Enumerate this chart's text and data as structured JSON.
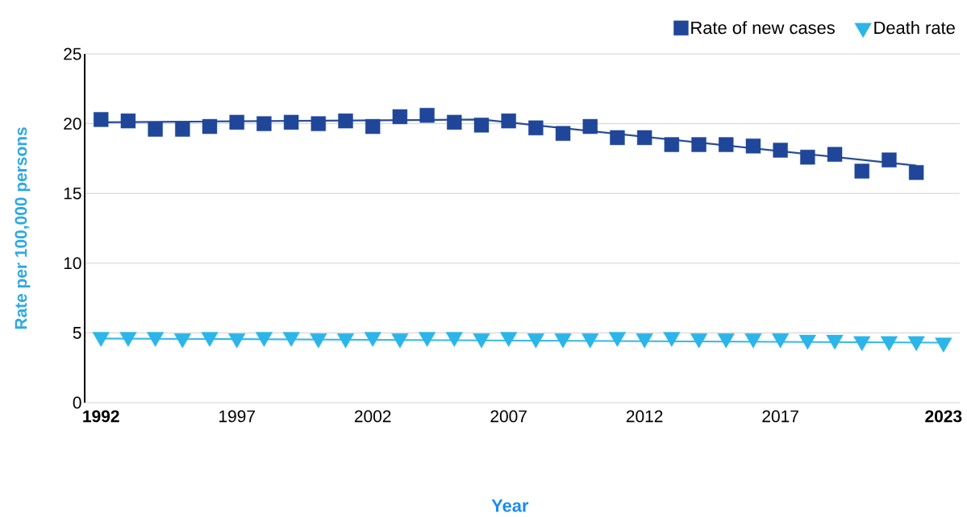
{
  "chart_data": {
    "type": "line",
    "xlabel": "Year",
    "ylabel": "Rate per 100,000 persons",
    "xlim": [
      1991.4,
      2023.6
    ],
    "ylim": [
      0,
      25
    ],
    "yticks": [
      0,
      5,
      10,
      15,
      20,
      25
    ],
    "xticks": [
      1992,
      1997,
      2002,
      2007,
      2012,
      2017,
      2023
    ],
    "grid": "y",
    "legend": "top right",
    "series": [
      {
        "color": "#2a4e96",
        "x": [
          1992,
          2006,
          2022
        ],
        "values": [
          20.1,
          20.3,
          17.0
        ],
        "marker": "none"
      },
      {
        "color": "#36b8e8",
        "x": [
          1992,
          2023
        ],
        "values": [
          4.6,
          4.3
        ],
        "marker": "none"
      },
      {
        "type": "scatter",
        "name": "Rate of new cases",
        "color": "#1f4699",
        "marker": "square",
        "x": [
          1992,
          1993,
          1994,
          1995,
          1996,
          1997,
          1998,
          1999,
          2000,
          2001,
          2002,
          2003,
          2004,
          2005,
          2006,
          2007,
          2008,
          2009,
          2010,
          2011,
          2012,
          2013,
          2014,
          2015,
          2016,
          2017,
          2018,
          2019,
          2020,
          2021,
          2022
        ],
        "values": [
          20.3,
          20.2,
          19.6,
          19.6,
          19.8,
          20.1,
          20.0,
          20.1,
          20.0,
          20.2,
          19.8,
          20.5,
          20.6,
          20.1,
          19.9,
          20.2,
          19.7,
          19.3,
          19.8,
          19.0,
          19.0,
          18.5,
          18.5,
          18.5,
          18.4,
          18.1,
          17.6,
          17.8,
          16.6,
          17.4,
          16.5
        ]
      },
      {
        "type": "scatter",
        "name": "Death rate",
        "color": "#2bb5e8",
        "marker": "triangle",
        "x": [
          1992,
          1993,
          1994,
          1995,
          1996,
          1997,
          1998,
          1999,
          2000,
          2001,
          2002,
          2003,
          2004,
          2005,
          2006,
          2007,
          2008,
          2009,
          2010,
          2011,
          2012,
          2013,
          2014,
          2015,
          2016,
          2017,
          2018,
          2019,
          2020,
          2021,
          2022,
          2023
        ],
        "values": [
          4.7,
          4.7,
          4.7,
          4.6,
          4.7,
          4.6,
          4.7,
          4.7,
          4.6,
          4.6,
          4.7,
          4.6,
          4.7,
          4.7,
          4.6,
          4.7,
          4.6,
          4.6,
          4.6,
          4.7,
          4.6,
          4.7,
          4.6,
          4.6,
          4.6,
          4.6,
          4.5,
          4.5,
          4.4,
          4.4,
          4.4,
          4.3
        ]
      }
    ]
  }
}
